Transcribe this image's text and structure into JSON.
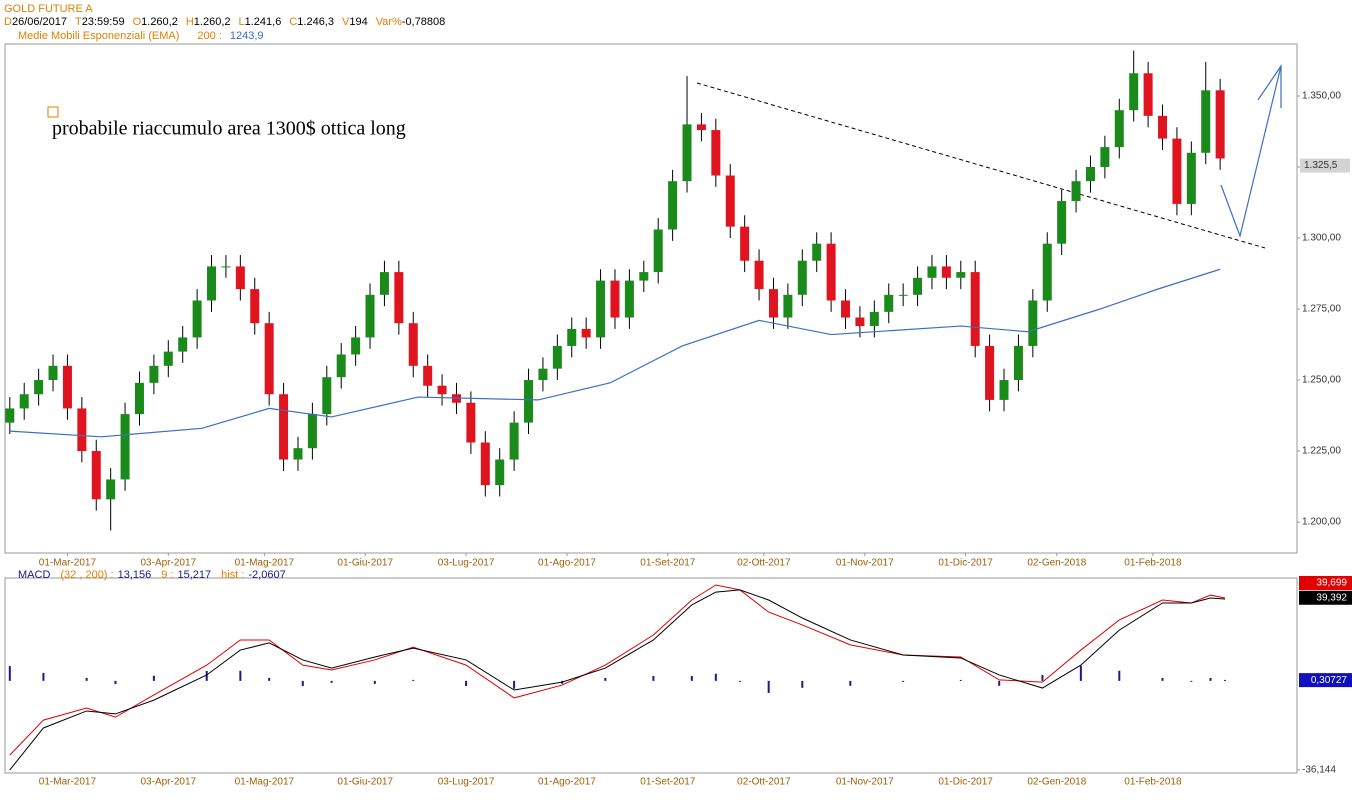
{
  "header": {
    "title": "GOLD FUTURE A",
    "quote": [
      {
        "key": "D",
        "value": "26/06/2017"
      },
      {
        "key": "T",
        "value": "23:59:59"
      },
      {
        "key": "O",
        "value": "1.260,2"
      },
      {
        "key": "H",
        "value": "1.260,2"
      },
      {
        "key": "L",
        "value": "1.241,6"
      },
      {
        "key": "C",
        "value": "1.246,3"
      },
      {
        "key": "V",
        "value": "194"
      },
      {
        "key": "Var%",
        "value": "-0,78808"
      }
    ],
    "ema": {
      "period": "200 :",
      "value": "1243,9"
    }
  },
  "annotation": "probabile riaccumulo area 1300$ ottica long",
  "chart_data": [
    {
      "type": "candlestick",
      "xlim": [
        -1,
        268
      ],
      "xticks": [
        {
          "value": 12,
          "label": "01-Mar-2017"
        },
        {
          "value": 33,
          "label": "03-Apr-2017"
        },
        {
          "value": 53,
          "label": "01-Mag-2017"
        },
        {
          "value": 74,
          "label": "01-Giu-2017"
        },
        {
          "value": 95,
          "label": "03-Lug-2017"
        },
        {
          "value": 116,
          "label": "01-Ago-2017"
        },
        {
          "value": 137,
          "label": "01-Set-2017"
        },
        {
          "value": 157,
          "label": "02-Ott-2017"
        },
        {
          "value": 178,
          "label": "01-Nov-2017"
        },
        {
          "value": 199,
          "label": "01-Dic-2017"
        },
        {
          "value": 218,
          "label": "02-Gen-2018"
        },
        {
          "value": 238,
          "label": "01-Feb-2018"
        }
      ],
      "ylim": [
        1189.1,
        1368.3
      ],
      "yticks": [
        {
          "value": 1200,
          "label": "1.200,00"
        },
        {
          "value": 1225,
          "label": "1.225,00"
        },
        {
          "value": 1250,
          "label": "1.250,00"
        },
        {
          "value": 1275,
          "label": "1.275,00"
        },
        {
          "value": 1300,
          "label": "1.300,00"
        },
        {
          "value": 1325,
          "label": "1.325,00"
        },
        {
          "value": 1350,
          "label": "1.350,00"
        }
      ],
      "up_color": "#1a8a1a",
      "down_color": "#e0141e",
      "x": [
        0,
        3,
        6,
        9,
        12,
        15,
        18,
        21,
        24,
        27,
        30,
        33,
        36,
        39,
        42,
        45,
        48,
        51,
        54,
        57,
        60,
        63,
        66,
        69,
        72,
        75,
        78,
        81,
        84,
        87,
        90,
        93,
        96,
        99,
        102,
        105,
        108,
        111,
        114,
        117,
        120,
        123,
        126,
        129,
        132,
        135,
        138,
        141,
        144,
        147,
        150,
        153,
        156,
        159,
        162,
        165,
        168,
        171,
        174,
        177,
        180,
        183,
        186,
        189,
        192,
        195,
        198,
        201,
        204,
        207,
        210,
        213,
        216,
        219,
        222,
        225,
        228,
        231,
        234,
        237,
        240,
        243,
        246,
        249,
        252
      ],
      "open": [
        1235,
        1240,
        1245,
        1250,
        1255,
        1240,
        1225,
        1208,
        1215,
        1238,
        1249,
        1255,
        1260,
        1265,
        1278,
        1290,
        1290,
        1282,
        1270,
        1245,
        1222,
        1226,
        1238,
        1251,
        1259,
        1265,
        1280,
        1288,
        1270,
        1255,
        1248,
        1245,
        1242,
        1228,
        1213,
        1222,
        1235,
        1250,
        1254,
        1262,
        1268,
        1265,
        1285,
        1272,
        1285,
        1288,
        1303,
        1320,
        1340,
        1338,
        1322,
        1304,
        1292,
        1282,
        1272,
        1280,
        1292,
        1298,
        1278,
        1272,
        1269,
        1274,
        1280,
        1280,
        1286,
        1290,
        1286,
        1288,
        1262,
        1243,
        1250,
        1262,
        1278,
        1298,
        1313,
        1320,
        1325,
        1332,
        1345,
        1358,
        1343,
        1335,
        1312,
        1330,
        1352
      ],
      "high": [
        1244,
        1249,
        1254,
        1259,
        1259,
        1244,
        1229,
        1219,
        1242,
        1253,
        1259,
        1264,
        1269,
        1282,
        1294,
        1294,
        1294,
        1286,
        1274,
        1249,
        1230,
        1242,
        1255,
        1263,
        1269,
        1284,
        1292,
        1292,
        1274,
        1259,
        1252,
        1249,
        1246,
        1232,
        1226,
        1239,
        1254,
        1258,
        1266,
        1272,
        1272,
        1289,
        1289,
        1289,
        1292,
        1307,
        1324,
        1357,
        1344,
        1342,
        1326,
        1308,
        1296,
        1286,
        1284,
        1296,
        1302,
        1302,
        1282,
        1276,
        1278,
        1284,
        1284,
        1290,
        1294,
        1294,
        1292,
        1292,
        1266,
        1254,
        1266,
        1282,
        1302,
        1317,
        1324,
        1329,
        1336,
        1349,
        1366,
        1362,
        1347,
        1339,
        1334,
        1362,
        1356
      ],
      "low": [
        1231,
        1236,
        1241,
        1246,
        1236,
        1221,
        1204,
        1197,
        1211,
        1234,
        1245,
        1251,
        1256,
        1261,
        1274,
        1286,
        1278,
        1266,
        1241,
        1218,
        1218,
        1222,
        1234,
        1247,
        1255,
        1261,
        1276,
        1266,
        1251,
        1244,
        1241,
        1238,
        1224,
        1209,
        1209,
        1218,
        1231,
        1246,
        1250,
        1258,
        1261,
        1261,
        1268,
        1268,
        1281,
        1284,
        1299,
        1316,
        1334,
        1318,
        1300,
        1288,
        1278,
        1268,
        1268,
        1276,
        1288,
        1274,
        1268,
        1265,
        1265,
        1270,
        1276,
        1276,
        1282,
        1282,
        1282,
        1258,
        1239,
        1239,
        1246,
        1258,
        1274,
        1294,
        1309,
        1316,
        1321,
        1328,
        1341,
        1339,
        1331,
        1308,
        1308,
        1326,
        1324
      ],
      "close": [
        1240,
        1245,
        1250,
        1255,
        1240,
        1225,
        1208,
        1215,
        1238,
        1249,
        1255,
        1260,
        1265,
        1278,
        1290,
        1290,
        1282,
        1270,
        1245,
        1222,
        1226,
        1238,
        1251,
        1259,
        1265,
        1280,
        1288,
        1270,
        1255,
        1248,
        1245,
        1242,
        1228,
        1213,
        1222,
        1235,
        1250,
        1254,
        1262,
        1268,
        1265,
        1285,
        1272,
        1285,
        1288,
        1303,
        1320,
        1340,
        1338,
        1322,
        1304,
        1292,
        1282,
        1272,
        1280,
        1292,
        1298,
        1278,
        1272,
        1269,
        1274,
        1280,
        1280,
        1286,
        1290,
        1286,
        1288,
        1262,
        1243,
        1250,
        1262,
        1278,
        1298,
        1313,
        1320,
        1325,
        1332,
        1345,
        1358,
        1343,
        1335,
        1312,
        1330,
        1352,
        1328
      ],
      "series": [
        {
          "name": "Medie Mobili Esponenziali (EMA)",
          "color": "#3a6fc4",
          "x": [
            0,
            19,
            40,
            54,
            67,
            85,
            110,
            125,
            140,
            156,
            171,
            198,
            212,
            227,
            239,
            252
          ],
          "values": [
            1232,
            1230,
            1233,
            1240,
            1237,
            1244,
            1243,
            1249,
            1262,
            1271,
            1266,
            1269,
            1267,
            1275,
            1282,
            1289
          ]
        }
      ],
      "last_value": {
        "value": 1325.5,
        "label": "1.325,5"
      }
    },
    {
      "type": "macd",
      "title": "MACD",
      "readout": [
        {
          "key": "(32 , 200) :",
          "value": "13,156"
        },
        {
          "key": "9 :",
          "value": "15,217"
        },
        {
          "key": "hist :",
          "value": "-2,0607"
        }
      ],
      "xlim": [
        -1,
        268
      ],
      "ylim": [
        -36.144,
        39.699
      ],
      "yticks": [
        {
          "value": -36.144,
          "label": "-36,144"
        }
      ],
      "x": [
        0,
        7,
        16,
        22,
        30,
        41,
        48,
        54,
        61,
        67,
        76,
        84,
        95,
        105,
        115,
        124,
        134,
        142,
        147,
        152,
        158,
        165,
        175,
        186,
        198,
        206,
        215,
        223,
        231,
        240,
        246,
        250,
        253
      ],
      "series": [
        {
          "color": "#e00000",
          "values": [
            -30.1,
            -15.9,
            -11.0,
            -14.7,
            -5.7,
            6.4,
            16.6,
            16.6,
            6.4,
            4.4,
            8.5,
            13.7,
            6.4,
            -6.9,
            -1.7,
            6.4,
            18.6,
            32.8,
            38.9,
            36.9,
            27.9,
            22.7,
            14.6,
            10.5,
            9.7,
            0.4,
            -0.5,
            12.5,
            24.7,
            32.8,
            31.6,
            34.8,
            33.6
          ]
        },
        {
          "color": "#000000",
          "values": [
            -36.1,
            -19.1,
            -12.2,
            -13.4,
            -7.8,
            2.4,
            12.5,
            15.4,
            8.5,
            5.2,
            9.7,
            13.3,
            8.5,
            -3.7,
            -0.5,
            5.2,
            16.6,
            30.8,
            36.0,
            36.9,
            32.8,
            25.5,
            16.6,
            10.5,
            9.3,
            2.4,
            -2.9,
            6.4,
            20.6,
            31.6,
            31.6,
            33.6,
            33.2
          ]
        }
      ],
      "histogram": {
        "color": "#1a1a8a",
        "values": [
          6.0,
          3.2,
          1.2,
          -1.3,
          2.1,
          4.0,
          4.1,
          1.2,
          -2.1,
          -0.8,
          -1.2,
          0.4,
          -2.1,
          -3.2,
          -1.2,
          1.2,
          2.0,
          2.0,
          2.9,
          0.0,
          -4.9,
          -2.8,
          -2.0,
          0.0,
          0.4,
          -2.0,
          2.4,
          6.1,
          4.1,
          1.2,
          0.0,
          1.2,
          0.4
        ]
      },
      "markers": [
        {
          "value": 39.699,
          "label": "39,699",
          "color": "#e00000"
        },
        {
          "value": 39.392,
          "label": "39,392",
          "color": "#000000"
        },
        {
          "value": 0.30727,
          "label": "0,30727",
          "color": "#1010c0"
        }
      ]
    }
  ]
}
